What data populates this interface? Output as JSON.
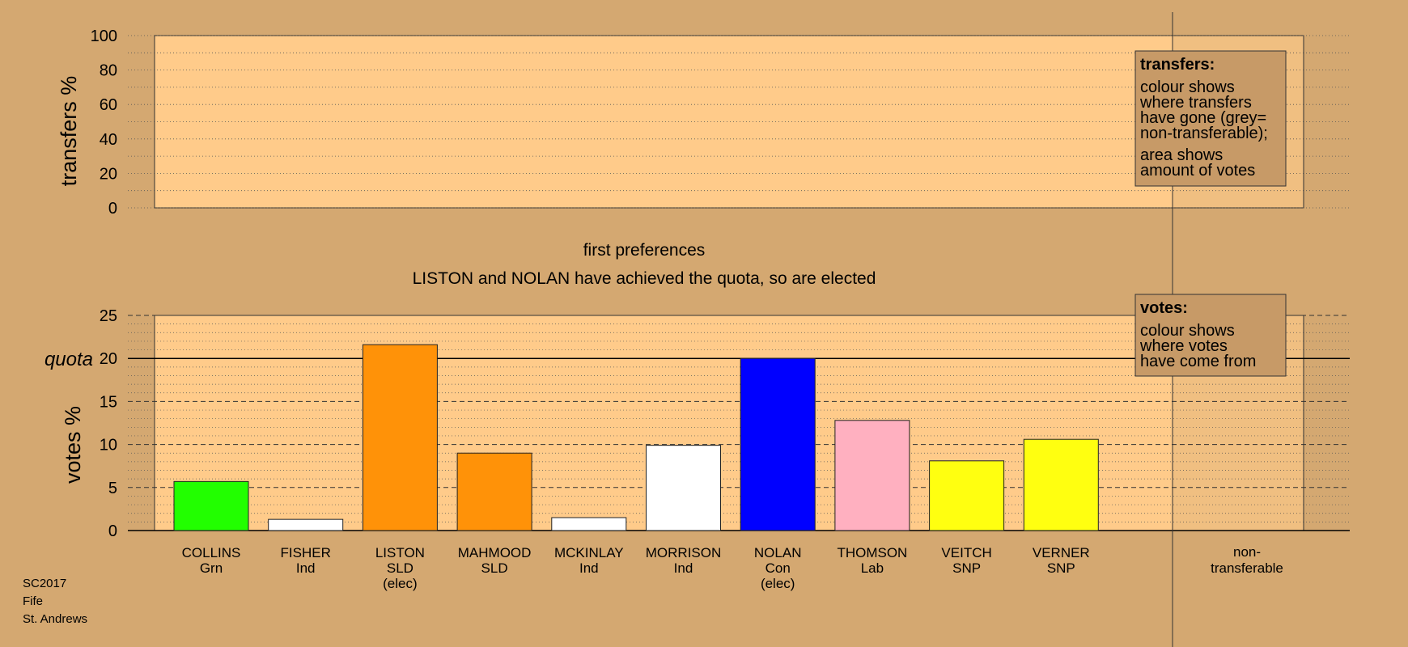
{
  "chart_data": [
    {
      "type": "bar",
      "name": "transfers",
      "ylabel": "transfers %",
      "ylim": [
        0,
        100
      ],
      "yticks": [
        0,
        20,
        40,
        60,
        80,
        100
      ],
      "categories": [],
      "values": [],
      "legend": {
        "title": "transfers:",
        "lines": [
          "colour shows",
          "where transfers",
          "have gone (grey=",
          "non-transferable);"
        ],
        "lines2": [
          "area shows",
          "amount of votes"
        ]
      }
    },
    {
      "type": "bar",
      "name": "votes",
      "title": "first preferences",
      "subtitle": "LISTON and NOLAN have achieved the quota, so are elected",
      "ylabel": "votes %",
      "ylim": [
        0,
        25
      ],
      "yticks": [
        0,
        5,
        10,
        15,
        20,
        25
      ],
      "quota": 20,
      "quota_label": "quota",
      "categories": [
        {
          "name": "COLLINS",
          "party": "Grn",
          "note": "",
          "value": 5.7,
          "color": "#22FF00"
        },
        {
          "name": "FISHER",
          "party": "Ind",
          "note": "",
          "value": 1.3,
          "color": "#FFFFFF"
        },
        {
          "name": "LISTON",
          "party": "SLD",
          "note": "(elec)",
          "value": 21.6,
          "color": "#FF9208"
        },
        {
          "name": "MAHMOOD",
          "party": "SLD",
          "note": "",
          "value": 9.0,
          "color": "#FF9208"
        },
        {
          "name": "MCKINLAY",
          "party": "Ind",
          "note": "",
          "value": 1.5,
          "color": "#FFFFFF"
        },
        {
          "name": "MORRISON",
          "party": "Ind",
          "note": "",
          "value": 9.9,
          "color": "#FFFFFF"
        },
        {
          "name": "NOLAN",
          "party": "Con",
          "note": "(elec)",
          "value": 20.0,
          "color": "#0000FF"
        },
        {
          "name": "THOMSON",
          "party": "Lab",
          "note": "",
          "value": 12.8,
          "color": "#FFB0C0"
        },
        {
          "name": "VEITCH",
          "party": "SNP",
          "note": "",
          "value": 8.1,
          "color": "#FFFF10"
        },
        {
          "name": "VERNER",
          "party": "SNP",
          "note": "",
          "value": 10.6,
          "color": "#FFFF10"
        }
      ],
      "nontransferable_label": [
        "non-",
        "transferable"
      ],
      "legend": {
        "title": "votes:",
        "lines": [
          "colour shows",
          "where votes",
          "have come from"
        ]
      }
    }
  ],
  "footer": [
    "SC2017",
    "Fife",
    "St. Andrews"
  ],
  "colors": {
    "background": "#D4A871",
    "plot_bg": "#FFCB8A",
    "legend_bg": "#C79A67"
  }
}
